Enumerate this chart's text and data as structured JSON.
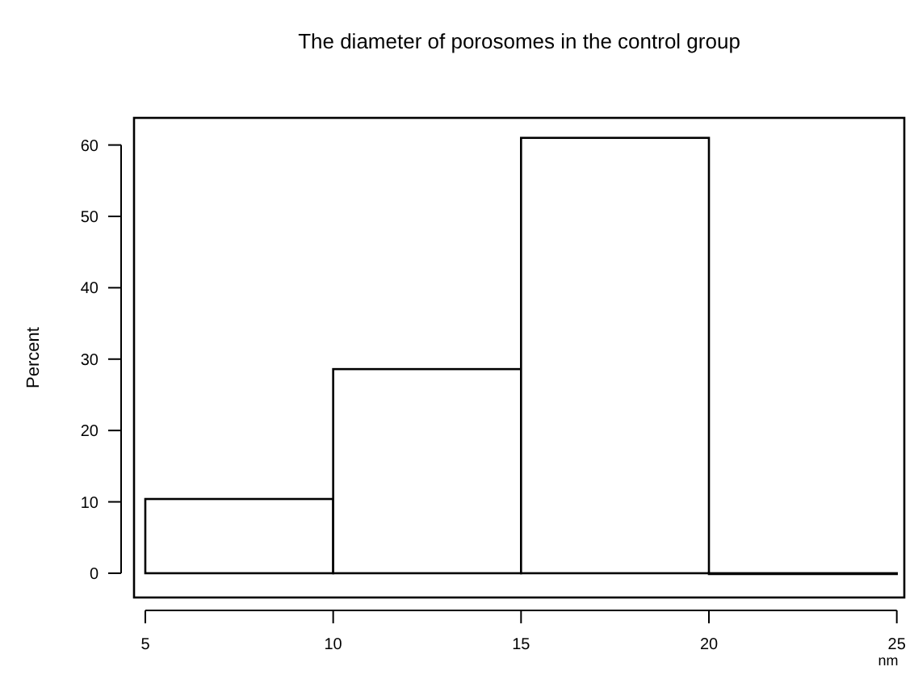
{
  "chart_data": {
    "type": "histogram",
    "title": "The diameter of porosomes in the control group",
    "xlabel": "nm",
    "ylabel": "Percent",
    "bins": [
      5,
      10,
      15,
      20,
      25
    ],
    "values": [
      10.4,
      28.6,
      61.0,
      0
    ],
    "color": "#ffffff",
    "xlim": [
      4.7,
      25.2
    ],
    "xticks": [
      5,
      10,
      15,
      20,
      25
    ],
    "ylim": [
      -3.4,
      63.8
    ],
    "yticks": [
      0,
      10,
      20,
      30,
      40,
      50,
      60
    ],
    "grid": false
  }
}
